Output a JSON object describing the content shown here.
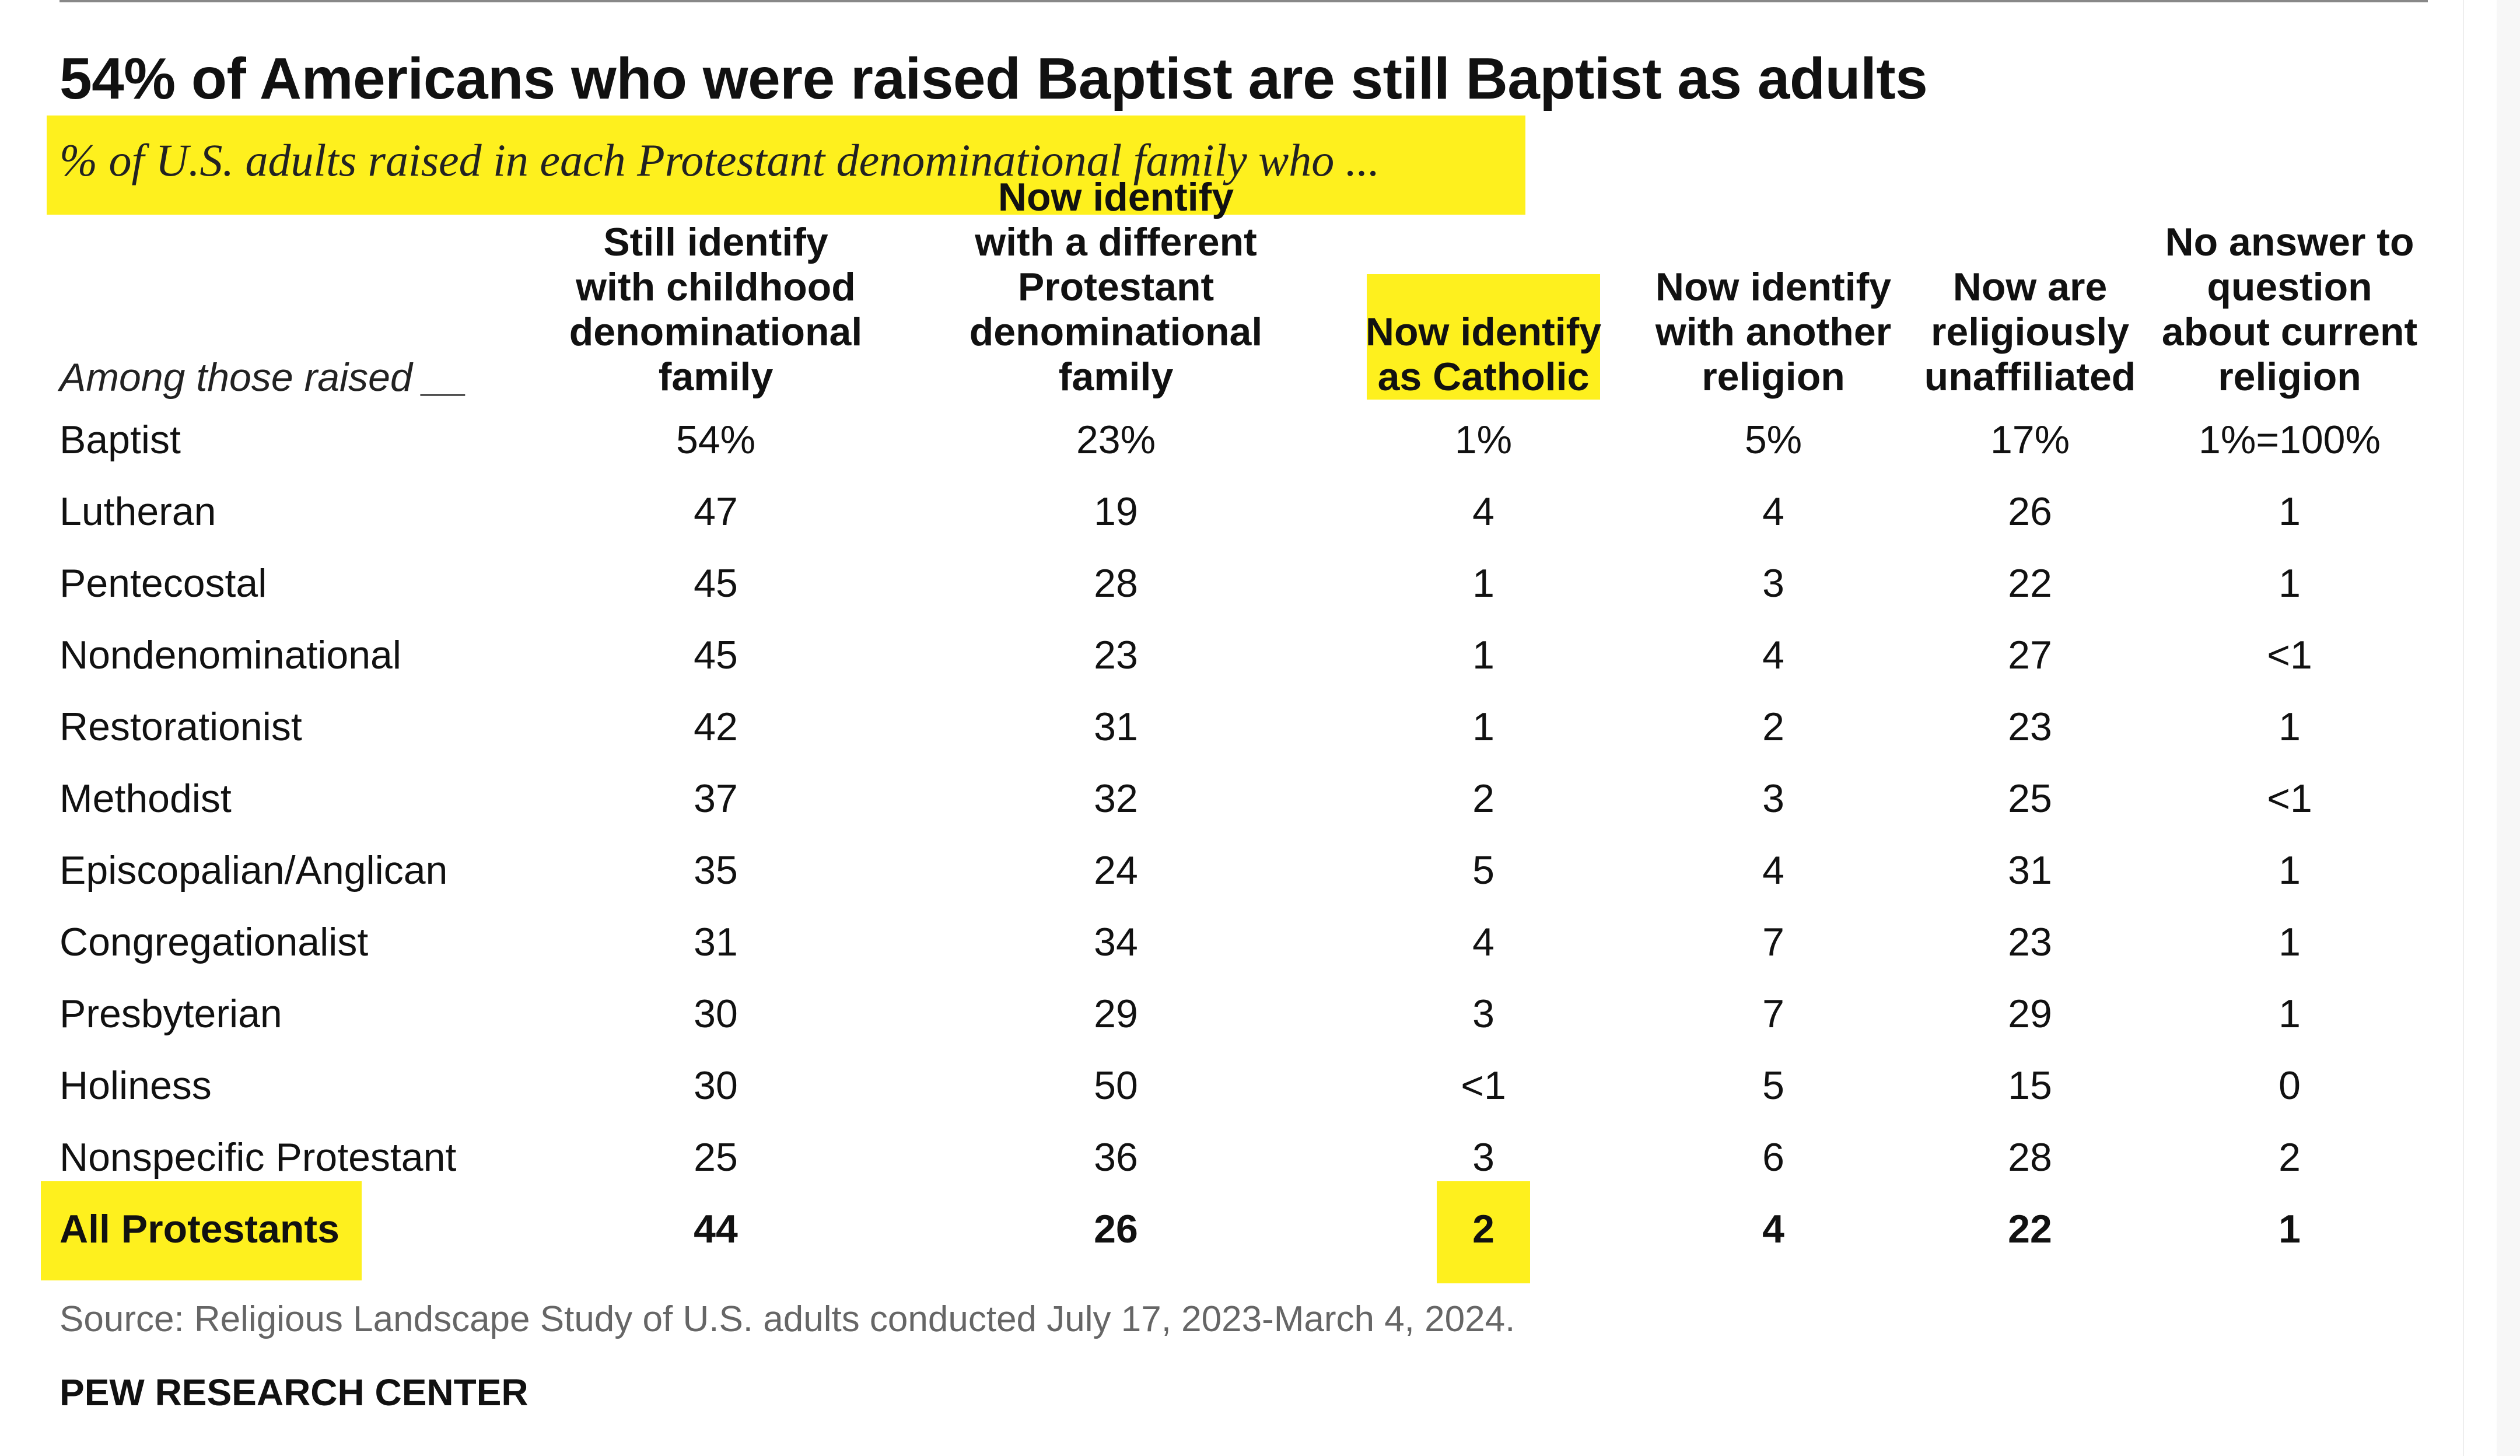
{
  "title": "54% of Americans who were raised Baptist are still Baptist as adults",
  "subtitle": "% of U.S. adults raised in each Protestant denominational family who ...",
  "accent_color": "#fef01e",
  "chart_data": {
    "type": "table",
    "row_header": "Among those raised __",
    "columns": [
      "Still identify with childhood denominational family",
      "Now identify with a different Protestant denominational family",
      "Now identify as Catholic",
      "Now identify with another religion",
      "Now are religiously unaffiliated",
      "No answer to question about current religion"
    ],
    "rows": [
      {
        "label": "Baptist",
        "values": [
          "54%",
          "23%",
          "1%",
          "5%",
          "17%",
          "1%=100%"
        ]
      },
      {
        "label": "Lutheran",
        "values": [
          "47",
          "19",
          "4",
          "4",
          "26",
          "1"
        ]
      },
      {
        "label": "Pentecostal",
        "values": [
          "45",
          "28",
          "1",
          "3",
          "22",
          "1"
        ]
      },
      {
        "label": "Nondenominational",
        "values": [
          "45",
          "23",
          "1",
          "4",
          "27",
          "<1"
        ]
      },
      {
        "label": "Restorationist",
        "values": [
          "42",
          "31",
          "1",
          "2",
          "23",
          "1"
        ]
      },
      {
        "label": "Methodist",
        "values": [
          "37",
          "32",
          "2",
          "3",
          "25",
          "<1"
        ]
      },
      {
        "label": "Episcopalian/Anglican",
        "values": [
          "35",
          "24",
          "5",
          "4",
          "31",
          "1"
        ]
      },
      {
        "label": "Congregationalist",
        "values": [
          "31",
          "34",
          "4",
          "7",
          "23",
          "1"
        ]
      },
      {
        "label": "Presbyterian",
        "values": [
          "30",
          "29",
          "3",
          "7",
          "29",
          "1"
        ]
      },
      {
        "label": "Holiness",
        "values": [
          "30",
          "50",
          "<1",
          "5",
          "15",
          "0"
        ]
      },
      {
        "label": "Nonspecific Protestant",
        "values": [
          "25",
          "36",
          "3",
          "6",
          "28",
          "2"
        ]
      },
      {
        "label": "All Protestants",
        "values": [
          "44",
          "26",
          "2",
          "4",
          "22",
          "1"
        ],
        "bold": true,
        "highlighted": true
      }
    ],
    "highlighted_column": "Now identify as Catholic",
    "highlighted_cell": {
      "row": "All Protestants",
      "column": "Now identify as Catholic"
    }
  },
  "source": "Source: Religious Landscape Study of U.S. adults conducted July 17, 2023-March 4, 2024.",
  "brand": "PEW RESEARCH CENTER"
}
